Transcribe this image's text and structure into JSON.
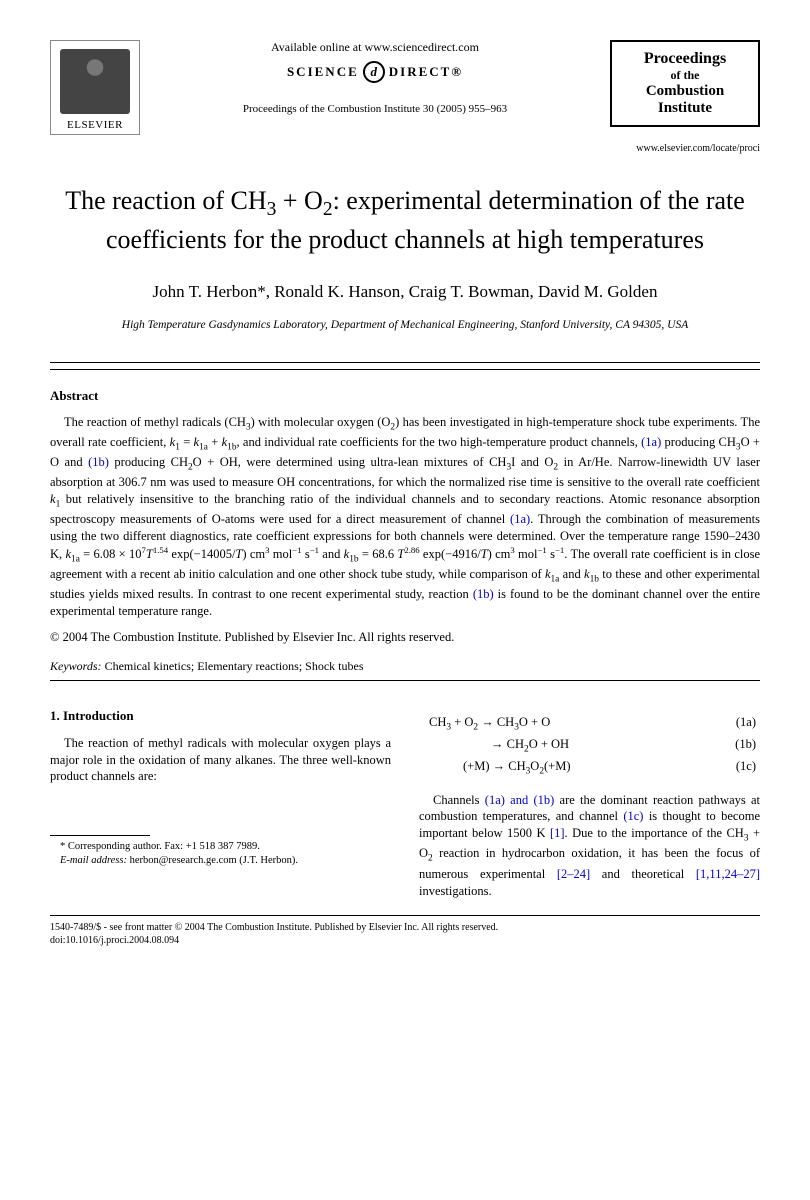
{
  "header": {
    "elsevier_label": "ELSEVIER",
    "available_online": "Available online at www.sciencedirect.com",
    "science_direct_left": "SCIENCE",
    "science_direct_right": "DIRECT®",
    "citation": "Proceedings of the Combustion Institute 30 (2005) 955–963",
    "journal_box": {
      "line1": "Proceedings",
      "line2": "of the",
      "line3": "Combustion",
      "line4": "Institute"
    },
    "journal_url": "www.elsevier.com/locate/proci"
  },
  "title_parts": {
    "prefix": "The reaction of CH",
    "sub1": "3",
    "mid1": " + O",
    "sub2": "2",
    "suffix": ": experimental determination of the rate coefficients for the product channels at high temperatures"
  },
  "authors": "John T. Herbon*, Ronald K. Hanson, Craig T. Bowman, David M. Golden",
  "affiliation": "High Temperature Gasdynamics Laboratory, Department of Mechanical Engineering, Stanford University, CA 94305, USA",
  "abstract": {
    "heading": "Abstract",
    "body_html": "The reaction of methyl radicals (CH<sub>3</sub>) with molecular oxygen (O<sub>2</sub>) has been investigated in high-temperature shock tube experiments. The overall rate coefficient, <i>k</i><sub>1</sub> = <i>k</i><sub>1a</sub> + <i>k</i><sub>1b</sub>, and individual rate coefficients for the two high-temperature product channels, <span class='ref-link'>(1a)</span> producing CH<sub>3</sub>O + O and <span class='ref-link'>(1b)</span> producing CH<sub>2</sub>O + OH, were determined using ultra-lean mixtures of CH<sub>3</sub>I and O<sub>2</sub> in Ar/He. Narrow-linewidth UV laser absorption at 306.7 nm was used to measure OH concentrations, for which the normalized rise time is sensitive to the overall rate coefficient <i>k</i><sub>1</sub> but relatively insensitive to the branching ratio of the individual channels and to secondary reactions. Atomic resonance absorption spectroscopy measurements of O-atoms were used for a direct measurement of channel <span class='ref-link'>(1a)</span>. Through the combination of measurements using the two different diagnostics, rate coefficient expressions for both channels were determined. Over the temperature range 1590–2430 K, <i>k</i><sub>1a</sub> = 6.08 × 10<sup>7</sup><i>T</i><sup>1.54</sup> exp(−14005/<i>T</i>) cm<sup>3</sup> mol<sup>−1</sup> s<sup>−1</sup> and <i>k</i><sub>1b</sub> = 68.6 <i>T</i><sup>2.86</sup> exp(−4916/<i>T</i>) cm<sup>3</sup> mol<sup>−1</sup> s<sup>−1</sup>. The overall rate coefficient is in close agreement with a recent ab initio calculation and one other shock tube study, while comparison of <i>k</i><sub>1a</sub> and <i>k</i><sub>1b</sub> to these and other experimental studies yields mixed results. In contrast to one recent experimental study, reaction <span class='ref-link'>(1b)</span> is found to be the dominant channel over the entire experimental temperature range.",
    "copyright": "© 2004 The Combustion Institute. Published by Elsevier Inc. All rights reserved."
  },
  "keywords": {
    "label": "Keywords:",
    "text": " Chemical kinetics; Elementary reactions; Shock tubes"
  },
  "intro": {
    "heading": "1. Introduction",
    "para1": "The reaction of methyl radicals with molecular oxygen plays a major role in the oxidation of many alkanes. The three well-known product channels are:",
    "equations": [
      {
        "lhs_html": "CH<sub>3</sub> + O<sub>2</sub> → CH<sub>3</sub>O + O",
        "num": "(1a)"
      },
      {
        "lhs_html": "→ CH<sub>2</sub>O + OH",
        "num": "(1b)"
      },
      {
        "lhs_html": "(+M) → CH<sub>3</sub>O<sub>2</sub>(+M)",
        "num": "(1c)"
      }
    ],
    "para2_html": "Channels <span class='ref-link'>(1a) and (1b)</span> are the dominant reaction pathways at combustion temperatures, and channel <span class='ref-link'>(1c)</span> is thought to become important below 1500 K <span class='ref-link'>[1]</span>. Due to the importance of the CH<sub>3</sub> + O<sub>2</sub> reaction in hydrocarbon oxidation, it has been the focus of numerous experimental <span class='ref-link'>[2–24]</span> and theoretical <span class='ref-link'>[1,11,24–27]</span> investigations."
  },
  "footnote": {
    "corresponding": "* Corresponding author. Fax: +1 518 387 7989.",
    "email_label": "E-mail address:",
    "email": " herbon@research.ge.com",
    "email_tail": " (J.T. Herbon)."
  },
  "footer": {
    "line1": "1540-7489/$ - see front matter © 2004 The Combustion Institute. Published by Elsevier Inc. All rights reserved.",
    "line2": "doi:10.1016/j.proci.2004.08.094"
  }
}
